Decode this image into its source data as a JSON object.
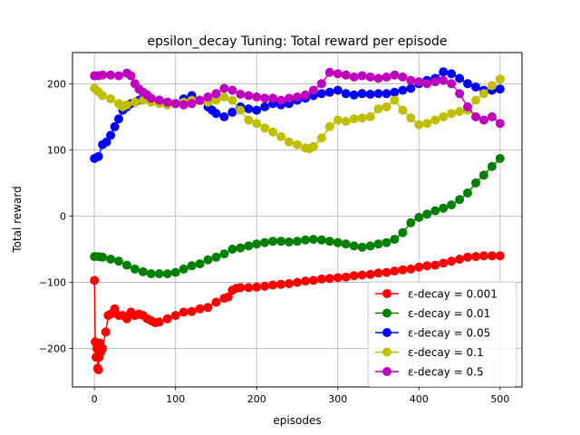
{
  "figure": {
    "title": "epsilon_decay Tuning: Total reward per episode",
    "xlabel": "episodes",
    "ylabel": "Total reward"
  },
  "chart_data": {
    "type": "line",
    "title": "epsilon_decay Tuning: Total reward per episode",
    "xlabel": "episodes",
    "ylabel": "Total reward",
    "xlim": [
      -27,
      527
    ],
    "ylim": [
      -258,
      247
    ],
    "xticks": [
      0,
      100,
      200,
      300,
      400,
      500
    ],
    "yticks": [
      -200,
      -100,
      0,
      100,
      200
    ],
    "ytick_labels": [
      "−200",
      "−100",
      "0",
      "100",
      "200"
    ],
    "grid": true,
    "legend_location": "lower right",
    "marker": "circle",
    "series": [
      {
        "name": "ε-decay = 0.001",
        "color": "#ff0000",
        "points": [
          [
            0,
            -97
          ],
          [
            1,
            -190
          ],
          [
            2,
            -213
          ],
          [
            3,
            -200
          ],
          [
            4,
            -230
          ],
          [
            5,
            -232
          ],
          [
            6,
            -213
          ],
          [
            7,
            -192
          ],
          [
            8,
            -205
          ],
          [
            10,
            -200
          ],
          [
            14,
            -175
          ],
          [
            17,
            -150
          ],
          [
            20,
            -148
          ],
          [
            25,
            -140
          ],
          [
            30,
            -150
          ],
          [
            35,
            -150
          ],
          [
            40,
            -155
          ],
          [
            45,
            -145
          ],
          [
            50,
            -150
          ],
          [
            55,
            -148
          ],
          [
            60,
            -150
          ],
          [
            65,
            -155
          ],
          [
            70,
            -158
          ],
          [
            75,
            -161
          ],
          [
            80,
            -160
          ],
          [
            90,
            -155
          ],
          [
            100,
            -150
          ],
          [
            110,
            -145
          ],
          [
            120,
            -144
          ],
          [
            130,
            -140
          ],
          [
            140,
            -138
          ],
          [
            150,
            -130
          ],
          [
            160,
            -124
          ],
          [
            165,
            -122
          ],
          [
            170,
            -112
          ],
          [
            175,
            -109
          ],
          [
            180,
            -108
          ],
          [
            190,
            -108
          ],
          [
            200,
            -107
          ],
          [
            210,
            -106
          ],
          [
            220,
            -104
          ],
          [
            230,
            -103
          ],
          [
            240,
            -102
          ],
          [
            250,
            -100
          ],
          [
            260,
            -98
          ],
          [
            270,
            -97
          ],
          [
            280,
            -95
          ],
          [
            290,
            -94
          ],
          [
            300,
            -93
          ],
          [
            310,
            -92
          ],
          [
            320,
            -90
          ],
          [
            330,
            -89
          ],
          [
            340,
            -88
          ],
          [
            350,
            -86
          ],
          [
            360,
            -85
          ],
          [
            370,
            -83
          ],
          [
            380,
            -81
          ],
          [
            390,
            -80
          ],
          [
            400,
            -77
          ],
          [
            410,
            -75
          ],
          [
            420,
            -74
          ],
          [
            430,
            -71
          ],
          [
            440,
            -68
          ],
          [
            450,
            -65
          ],
          [
            460,
            -62
          ],
          [
            470,
            -61
          ],
          [
            480,
            -60
          ],
          [
            490,
            -60
          ],
          [
            500,
            -60
          ]
        ]
      },
      {
        "name": "ε-decay = 0.01",
        "color": "#008000",
        "points": [
          [
            0,
            -61
          ],
          [
            5,
            -61
          ],
          [
            10,
            -62
          ],
          [
            20,
            -65
          ],
          [
            30,
            -68
          ],
          [
            40,
            -74
          ],
          [
            50,
            -80
          ],
          [
            60,
            -84
          ],
          [
            70,
            -87
          ],
          [
            80,
            -87
          ],
          [
            90,
            -87
          ],
          [
            100,
            -85
          ],
          [
            110,
            -80
          ],
          [
            120,
            -75
          ],
          [
            130,
            -72
          ],
          [
            140,
            -66
          ],
          [
            150,
            -62
          ],
          [
            160,
            -57
          ],
          [
            170,
            -50
          ],
          [
            180,
            -48
          ],
          [
            190,
            -45
          ],
          [
            200,
            -42
          ],
          [
            210,
            -40
          ],
          [
            220,
            -38
          ],
          [
            230,
            -38
          ],
          [
            240,
            -39
          ],
          [
            250,
            -38
          ],
          [
            260,
            -36
          ],
          [
            270,
            -35
          ],
          [
            280,
            -36
          ],
          [
            290,
            -38
          ],
          [
            300,
            -40
          ],
          [
            310,
            -42
          ],
          [
            320,
            -45
          ],
          [
            330,
            -47
          ],
          [
            340,
            -45
          ],
          [
            350,
            -42
          ],
          [
            360,
            -40
          ],
          [
            370,
            -35
          ],
          [
            380,
            -25
          ],
          [
            390,
            -10
          ],
          [
            400,
            -2
          ],
          [
            410,
            3
          ],
          [
            420,
            8
          ],
          [
            430,
            12
          ],
          [
            440,
            17
          ],
          [
            450,
            25
          ],
          [
            460,
            35
          ],
          [
            470,
            50
          ],
          [
            480,
            62
          ],
          [
            490,
            75
          ],
          [
            500,
            87
          ]
        ]
      },
      {
        "name": "ε-decay = 0.05",
        "color": "#0000ff",
        "points": [
          [
            0,
            87
          ],
          [
            5,
            90
          ],
          [
            10,
            108
          ],
          [
            15,
            112
          ],
          [
            20,
            122
          ],
          [
            25,
            135
          ],
          [
            30,
            147
          ],
          [
            35,
            160
          ],
          [
            40,
            165
          ],
          [
            45,
            170
          ],
          [
            50,
            172
          ],
          [
            55,
            175
          ],
          [
            60,
            178
          ],
          [
            65,
            178
          ],
          [
            70,
            177
          ],
          [
            80,
            175
          ],
          [
            90,
            172
          ],
          [
            100,
            170
          ],
          [
            110,
            177
          ],
          [
            120,
            182
          ],
          [
            130,
            175
          ],
          [
            140,
            165
          ],
          [
            145,
            160
          ],
          [
            150,
            155
          ],
          [
            160,
            150
          ],
          [
            170,
            157
          ],
          [
            180,
            165
          ],
          [
            190,
            162
          ],
          [
            200,
            160
          ],
          [
            210,
            165
          ],
          [
            220,
            170
          ],
          [
            230,
            168
          ],
          [
            240,
            170
          ],
          [
            250,
            175
          ],
          [
            260,
            178
          ],
          [
            270,
            182
          ],
          [
            280,
            185
          ],
          [
            290,
            187
          ],
          [
            300,
            190
          ],
          [
            310,
            185
          ],
          [
            320,
            183
          ],
          [
            330,
            185
          ],
          [
            340,
            184
          ],
          [
            350,
            185
          ],
          [
            360,
            185
          ],
          [
            370,
            187
          ],
          [
            380,
            190
          ],
          [
            390,
            193
          ],
          [
            400,
            200
          ],
          [
            410,
            205
          ],
          [
            420,
            208
          ],
          [
            430,
            218
          ],
          [
            440,
            215
          ],
          [
            450,
            208
          ],
          [
            460,
            200
          ],
          [
            470,
            195
          ],
          [
            480,
            190
          ],
          [
            490,
            190
          ],
          [
            500,
            192
          ]
        ]
      },
      {
        "name": "ε-decay = 0.1",
        "color": "#bfbf00",
        "points": [
          [
            0,
            193
          ],
          [
            5,
            188
          ],
          [
            10,
            182
          ],
          [
            20,
            177
          ],
          [
            30,
            170
          ],
          [
            35,
            165
          ],
          [
            40,
            168
          ],
          [
            50,
            172
          ],
          [
            60,
            175
          ],
          [
            70,
            172
          ],
          [
            80,
            170
          ],
          [
            90,
            168
          ],
          [
            100,
            170
          ],
          [
            110,
            172
          ],
          [
            120,
            175
          ],
          [
            130,
            174
          ],
          [
            140,
            172
          ],
          [
            150,
            175
          ],
          [
            160,
            180
          ],
          [
            170,
            175
          ],
          [
            180,
            160
          ],
          [
            190,
            145
          ],
          [
            200,
            140
          ],
          [
            210,
            133
          ],
          [
            220,
            127
          ],
          [
            230,
            120
          ],
          [
            240,
            112
          ],
          [
            250,
            108
          ],
          [
            260,
            103
          ],
          [
            265,
            102
          ],
          [
            270,
            105
          ],
          [
            280,
            118
          ],
          [
            290,
            135
          ],
          [
            300,
            145
          ],
          [
            310,
            143
          ],
          [
            320,
            147
          ],
          [
            330,
            148
          ],
          [
            340,
            150
          ],
          [
            350,
            162
          ],
          [
            360,
            165
          ],
          [
            370,
            175
          ],
          [
            380,
            160
          ],
          [
            390,
            148
          ],
          [
            400,
            138
          ],
          [
            410,
            140
          ],
          [
            420,
            145
          ],
          [
            430,
            150
          ],
          [
            440,
            155
          ],
          [
            450,
            158
          ],
          [
            460,
            160
          ],
          [
            470,
            175
          ],
          [
            480,
            185
          ],
          [
            490,
            197
          ],
          [
            500,
            207
          ]
        ]
      },
      {
        "name": "ε-decay = 0.5",
        "color": "#bf00bf",
        "points": [
          [
            0,
            212
          ],
          [
            5,
            212
          ],
          [
            10,
            213
          ],
          [
            20,
            213
          ],
          [
            30,
            212
          ],
          [
            40,
            216
          ],
          [
            45,
            212
          ],
          [
            50,
            200
          ],
          [
            55,
            192
          ],
          [
            60,
            187
          ],
          [
            65,
            183
          ],
          [
            70,
            178
          ],
          [
            80,
            175
          ],
          [
            90,
            172
          ],
          [
            100,
            170
          ],
          [
            110,
            168
          ],
          [
            120,
            170
          ],
          [
            130,
            175
          ],
          [
            140,
            180
          ],
          [
            150,
            185
          ],
          [
            160,
            193
          ],
          [
            170,
            190
          ],
          [
            180,
            184
          ],
          [
            190,
            182
          ],
          [
            200,
            180
          ],
          [
            210,
            178
          ],
          [
            220,
            178
          ],
          [
            230,
            175
          ],
          [
            240,
            178
          ],
          [
            250,
            180
          ],
          [
            260,
            183
          ],
          [
            270,
            190
          ],
          [
            280,
            200
          ],
          [
            290,
            217
          ],
          [
            300,
            215
          ],
          [
            310,
            213
          ],
          [
            320,
            210
          ],
          [
            330,
            212
          ],
          [
            340,
            210
          ],
          [
            350,
            208
          ],
          [
            360,
            210
          ],
          [
            370,
            213
          ],
          [
            380,
            210
          ],
          [
            390,
            205
          ],
          [
            400,
            203
          ],
          [
            410,
            200
          ],
          [
            420,
            203
          ],
          [
            430,
            205
          ],
          [
            440,
            200
          ],
          [
            450,
            185
          ],
          [
            460,
            165
          ],
          [
            470,
            150
          ],
          [
            480,
            145
          ],
          [
            490,
            150
          ],
          [
            500,
            140
          ]
        ]
      }
    ]
  }
}
